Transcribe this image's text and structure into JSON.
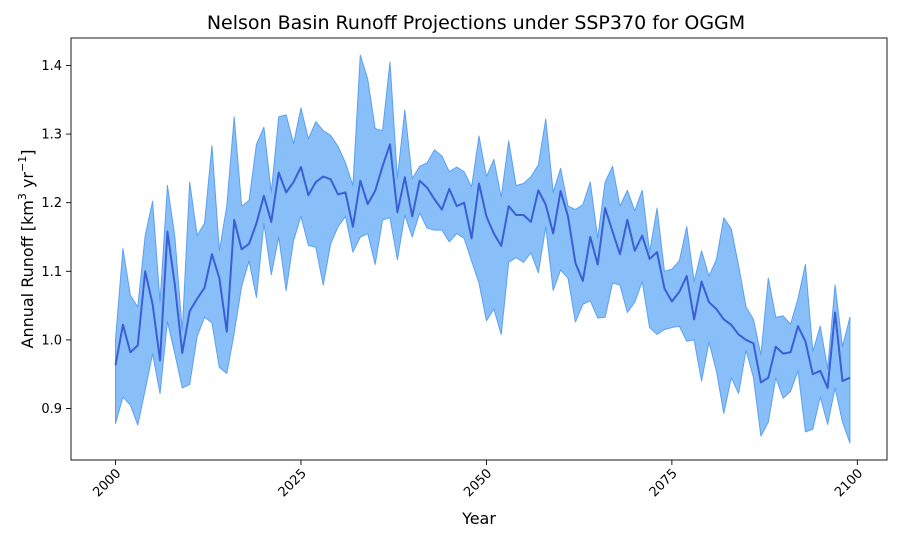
{
  "chart_data": {
    "type": "area",
    "title": "Nelson Basin Runoff Projections under SSP370 for OGGM",
    "xlabel": "Year",
    "ylabel_parts": {
      "prefix": "Annual Runoff [km",
      "sup1": "3",
      "middle": " yr",
      "sup2": "−1",
      "suffix": "]"
    },
    "xlim": [
      1994,
      2104
    ],
    "ylim": [
      0.825,
      1.44
    ],
    "xticks": [
      2000,
      2025,
      2050,
      2075,
      2100
    ],
    "xtick_labels": [
      "2000",
      "2025",
      "2050",
      "2075",
      "2100"
    ],
    "yticks": [
      0.9,
      1.0,
      1.1,
      1.2,
      1.3,
      1.4
    ],
    "ytick_labels": [
      "0.9",
      "1.0",
      "1.1",
      "1.2",
      "1.3",
      "1.4"
    ],
    "colors": {
      "band_fill": "#89bff9",
      "band_edge": "#5c9ff0",
      "mean_line": "#3a5fd4"
    },
    "x": [
      2000,
      2001,
      2002,
      2003,
      2004,
      2005,
      2006,
      2007,
      2008,
      2009,
      2010,
      2011,
      2012,
      2013,
      2014,
      2015,
      2016,
      2017,
      2018,
      2019,
      2020,
      2021,
      2022,
      2023,
      2024,
      2025,
      2026,
      2027,
      2028,
      2029,
      2030,
      2031,
      2032,
      2033,
      2034,
      2035,
      2036,
      2037,
      2038,
      2039,
      2040,
      2041,
      2042,
      2043,
      2044,
      2045,
      2046,
      2047,
      2048,
      2049,
      2050,
      2051,
      2052,
      2053,
      2054,
      2055,
      2056,
      2057,
      2058,
      2059,
      2060,
      2061,
      2062,
      2063,
      2064,
      2065,
      2066,
      2067,
      2068,
      2069,
      2070,
      2071,
      2072,
      2073,
      2074,
      2075,
      2076,
      2077,
      2078,
      2079,
      2080,
      2081,
      2082,
      2083,
      2084,
      2085,
      2086,
      2087,
      2088,
      2089,
      2090,
      2091,
      2092,
      2093,
      2094,
      2095,
      2096,
      2097,
      2098,
      2099
    ],
    "series": [
      {
        "name": "mean",
        "values": [
          0.963,
          1.022,
          0.982,
          0.992,
          1.1,
          1.052,
          0.97,
          1.158,
          1.08,
          0.981,
          1.042,
          1.06,
          1.076,
          1.125,
          1.09,
          1.012,
          1.175,
          1.132,
          1.14,
          1.17,
          1.21,
          1.172,
          1.244,
          1.215,
          1.23,
          1.252,
          1.211,
          1.23,
          1.238,
          1.234,
          1.212,
          1.215,
          1.165,
          1.232,
          1.198,
          1.217,
          1.253,
          1.285,
          1.186,
          1.237,
          1.18,
          1.232,
          1.222,
          1.205,
          1.19,
          1.22,
          1.195,
          1.2,
          1.148,
          1.228,
          1.18,
          1.155,
          1.137,
          1.195,
          1.182,
          1.182,
          1.172,
          1.218,
          1.197,
          1.155,
          1.217,
          1.18,
          1.112,
          1.086,
          1.15,
          1.11,
          1.192,
          1.158,
          1.125,
          1.175,
          1.13,
          1.152,
          1.118,
          1.128,
          1.075,
          1.056,
          1.07,
          1.093,
          1.03,
          1.085,
          1.055,
          1.045,
          1.03,
          1.022,
          1.008,
          1.0,
          0.995,
          0.938,
          0.945,
          0.99,
          0.98,
          0.982,
          1.02,
          0.998,
          0.95,
          0.955,
          0.93,
          1.04,
          0.94,
          0.945
        ]
      },
      {
        "name": "upper",
        "values": [
          1.0,
          1.133,
          1.065,
          1.048,
          1.152,
          1.202,
          1.055,
          1.225,
          1.15,
          1.013,
          1.23,
          1.152,
          1.17,
          1.283,
          1.13,
          1.195,
          1.325,
          1.195,
          1.203,
          1.285,
          1.31,
          1.215,
          1.325,
          1.328,
          1.286,
          1.338,
          1.293,
          1.318,
          1.305,
          1.298,
          1.282,
          1.258,
          1.225,
          1.415,
          1.38,
          1.308,
          1.305,
          1.405,
          1.235,
          1.335,
          1.235,
          1.253,
          1.258,
          1.277,
          1.268,
          1.245,
          1.252,
          1.245,
          1.223,
          1.297,
          1.238,
          1.263,
          1.208,
          1.29,
          1.225,
          1.228,
          1.238,
          1.255,
          1.322,
          1.215,
          1.25,
          1.195,
          1.19,
          1.197,
          1.23,
          1.148,
          1.23,
          1.253,
          1.195,
          1.218,
          1.188,
          1.218,
          1.128,
          1.192,
          1.1,
          1.103,
          1.115,
          1.165,
          1.085,
          1.13,
          1.093,
          1.117,
          1.178,
          1.162,
          1.108,
          1.048,
          1.03,
          0.978,
          1.09,
          1.033,
          1.035,
          1.023,
          1.06,
          1.11,
          0.983,
          1.02,
          0.958,
          1.08,
          0.99,
          1.033
        ]
      },
      {
        "name": "lower",
        "values": [
          0.878,
          0.917,
          0.905,
          0.876,
          0.927,
          0.98,
          0.922,
          1.027,
          0.98,
          0.93,
          0.935,
          1.005,
          1.033,
          1.025,
          0.96,
          0.951,
          1.01,
          1.078,
          1.115,
          1.062,
          1.17,
          1.095,
          1.15,
          1.072,
          1.145,
          1.18,
          1.138,
          1.135,
          1.08,
          1.14,
          1.165,
          1.18,
          1.128,
          1.15,
          1.155,
          1.11,
          1.175,
          1.178,
          1.117,
          1.182,
          1.15,
          1.185,
          1.163,
          1.16,
          1.16,
          1.143,
          1.155,
          1.148,
          1.115,
          1.083,
          1.028,
          1.045,
          1.008,
          1.113,
          1.12,
          1.113,
          1.127,
          1.098,
          1.165,
          1.072,
          1.102,
          1.09,
          1.026,
          1.052,
          1.057,
          1.032,
          1.033,
          1.083,
          1.08,
          1.04,
          1.055,
          1.085,
          1.018,
          1.008,
          1.015,
          1.018,
          1.02,
          0.998,
          1.0,
          0.94,
          0.997,
          0.955,
          0.893,
          0.945,
          0.922,
          0.985,
          0.945,
          0.86,
          0.88,
          0.945,
          0.915,
          0.925,
          0.955,
          0.866,
          0.87,
          0.917,
          0.877,
          0.93,
          0.88,
          0.85
        ]
      }
    ]
  }
}
